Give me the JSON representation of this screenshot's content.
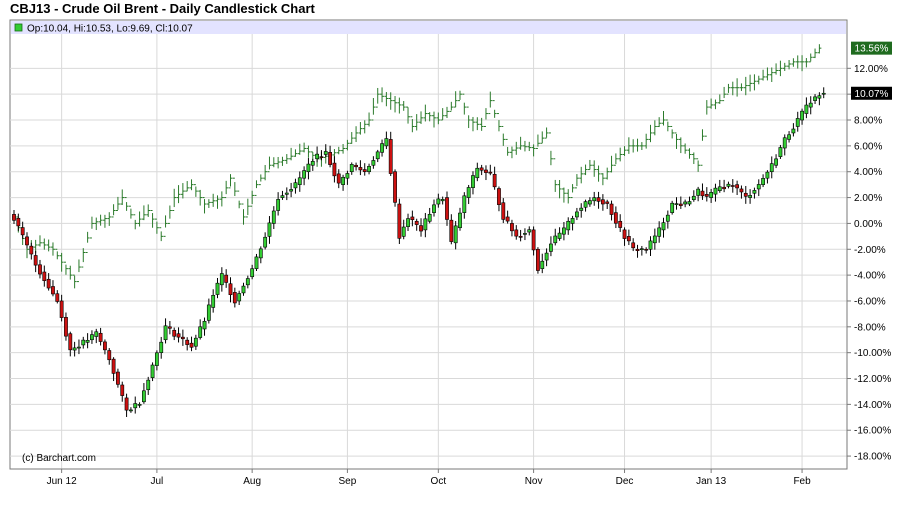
{
  "chart_data": {
    "type": "candlestick",
    "title": "CBJ13 - Crude Oil Brent - Daily Candlestick Chart",
    "legend": {
      "label": "Op:10.04, Hi:10.53, Lo:9.69, Cl:10.07",
      "color": "#33cc33"
    },
    "copyright": "(c) Barchart.com",
    "y_axis": {
      "side": "right",
      "unit": "%",
      "ylim": [
        -19,
        14.5
      ],
      "ticks": [
        "12.00%",
        "10.00%",
        "8.00%",
        "6.00%",
        "4.00%",
        "2.00%",
        "0.00%",
        "-2.00%",
        "-4.00%",
        "-6.00%",
        "-8.00%",
        "-10.00%",
        "-12.00%",
        "-14.00%",
        "-16.00%",
        "-18.00%"
      ],
      "tick_values": [
        12,
        10,
        8,
        6,
        4,
        2,
        0,
        -2,
        -4,
        -6,
        -8,
        -10,
        -12,
        -14,
        -16,
        -18
      ]
    },
    "x_axis": {
      "labels": [
        "Jun 12",
        "Jul",
        "Aug",
        "Sep",
        "Oct",
        "Nov",
        "Dec",
        "Jan 13",
        "Feb"
      ],
      "label_day_index": [
        11,
        33,
        55,
        77,
        98,
        120,
        141,
        161,
        182
      ]
    },
    "grid": true,
    "badges": [
      {
        "text": "13.56%",
        "value": 13.56,
        "color": "#1f6b1f"
      },
      {
        "text": "10.07%",
        "value": 10.07,
        "color": "#000000"
      }
    ],
    "series": [
      {
        "name": "CBJ13",
        "kind": "candlestick",
        "up_color": "#33cc33",
        "down_color": "#cc1111",
        "anchors": [
          [
            0,
            0.4
          ],
          [
            5,
            -3.2
          ],
          [
            10,
            -6.0
          ],
          [
            13,
            -9.8
          ],
          [
            17,
            -9.0
          ],
          [
            19,
            -8.5
          ],
          [
            22,
            -10.5
          ],
          [
            26,
            -14.5
          ],
          [
            29,
            -13.8
          ],
          [
            32,
            -11.0
          ],
          [
            35,
            -8.0
          ],
          [
            38,
            -8.8
          ],
          [
            41,
            -9.5
          ],
          [
            44,
            -7.5
          ],
          [
            46,
            -5.5
          ],
          [
            48,
            -4.0
          ],
          [
            51,
            -6.0
          ],
          [
            55,
            -3.5
          ],
          [
            58,
            -1.0
          ],
          [
            61,
            2.0
          ],
          [
            65,
            3.0
          ],
          [
            69,
            5.0
          ],
          [
            72,
            5.5
          ],
          [
            75,
            3.0
          ],
          [
            78,
            4.5
          ],
          [
            81,
            4.0
          ],
          [
            84,
            5.5
          ],
          [
            86,
            6.5
          ],
          [
            89,
            -1.0
          ],
          [
            91,
            0.5
          ],
          [
            94,
            -0.5
          ],
          [
            97,
            1.5
          ],
          [
            99,
            2.0
          ],
          [
            101,
            -1.5
          ],
          [
            104,
            2.0
          ],
          [
            107,
            4.3
          ],
          [
            110,
            3.8
          ],
          [
            113,
            0.5
          ],
          [
            116,
            -1.0
          ],
          [
            119,
            -0.5
          ],
          [
            121,
            -3.5
          ],
          [
            124,
            -1.5
          ],
          [
            127,
            -0.5
          ],
          [
            130,
            1.0
          ],
          [
            134,
            2.0
          ],
          [
            137,
            1.5
          ],
          [
            140,
            -0.5
          ],
          [
            143,
            -2.0
          ],
          [
            146,
            -2.0
          ],
          [
            149,
            -0.5
          ],
          [
            152,
            1.5
          ],
          [
            155,
            1.5
          ],
          [
            158,
            2.5
          ],
          [
            160,
            2.0
          ],
          [
            163,
            2.8
          ],
          [
            166,
            3.0
          ],
          [
            169,
            2.0
          ],
          [
            172,
            3.0
          ],
          [
            175,
            4.5
          ],
          [
            178,
            6.5
          ],
          [
            181,
            8.0
          ],
          [
            184,
            9.5
          ],
          [
            187,
            10.07
          ]
        ],
        "last": {
          "open": 10.04,
          "high": 10.53,
          "low": 9.69,
          "close": 10.07
        }
      },
      {
        "name": "",
        "kind": "ohlc_bar",
        "color": "#2a7a2a",
        "anchors": [
          [
            0,
            0.5
          ],
          [
            3,
            -2.0
          ],
          [
            6,
            -1.5
          ],
          [
            9,
            -2.0
          ],
          [
            14,
            -4.5
          ],
          [
            18,
            0.0
          ],
          [
            22,
            0.5
          ],
          [
            25,
            2.0
          ],
          [
            28,
            0.0
          ],
          [
            31,
            1.0
          ],
          [
            34,
            -1.0
          ],
          [
            37,
            2.0
          ],
          [
            41,
            3.0
          ],
          [
            44,
            1.5
          ],
          [
            48,
            2.0
          ],
          [
            50,
            3.5
          ],
          [
            53,
            0.5
          ],
          [
            56,
            3.0
          ],
          [
            59,
            4.5
          ],
          [
            63,
            5.0
          ],
          [
            67,
            5.8
          ],
          [
            70,
            5.0
          ],
          [
            73,
            5.3
          ],
          [
            76,
            5.8
          ],
          [
            79,
            7.0
          ],
          [
            82,
            8.0
          ],
          [
            84,
            10.0
          ],
          [
            87,
            9.5
          ],
          [
            90,
            9.0
          ],
          [
            92,
            7.5
          ],
          [
            95,
            8.5
          ],
          [
            98,
            8.0
          ],
          [
            101,
            9.0
          ],
          [
            103,
            10.0
          ],
          [
            105,
            8.0
          ],
          [
            108,
            7.5
          ],
          [
            110,
            9.5
          ],
          [
            112,
            7.5
          ],
          [
            114,
            5.5
          ],
          [
            117,
            6.0
          ],
          [
            120,
            5.8
          ],
          [
            123,
            7.0
          ],
          [
            125,
            3.0
          ],
          [
            128,
            2.0
          ],
          [
            130,
            3.5
          ],
          [
            133,
            4.5
          ],
          [
            136,
            3.5
          ],
          [
            139,
            5.0
          ],
          [
            142,
            6.0
          ],
          [
            145,
            6.0
          ],
          [
            148,
            7.5
          ],
          [
            150,
            8.0
          ],
          [
            152,
            7.0
          ],
          [
            154,
            6.0
          ],
          [
            157,
            5.0
          ],
          [
            158,
            4.5
          ],
          [
            160,
            9.0
          ],
          [
            163,
            9.5
          ],
          [
            165,
            10.5
          ],
          [
            168,
            10.5
          ],
          [
            171,
            11.0
          ],
          [
            174,
            11.5
          ],
          [
            177,
            12.0
          ],
          [
            180,
            12.5
          ],
          [
            183,
            12.5
          ],
          [
            186,
            13.56
          ]
        ]
      }
    ]
  }
}
